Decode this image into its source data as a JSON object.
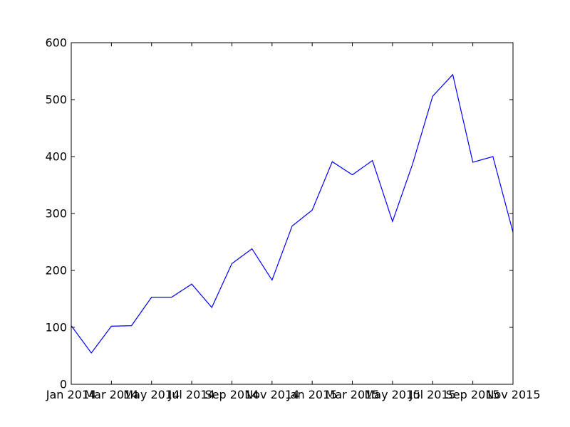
{
  "chart_data": {
    "type": "line",
    "title": "",
    "xlabel": "",
    "ylabel": "",
    "grid": false,
    "ylim": [
      0,
      600
    ],
    "yticks": [
      0,
      100,
      200,
      300,
      400,
      500,
      600
    ],
    "xlim": [
      "2014-01",
      "2015-11"
    ],
    "xticks": [
      "2014-01",
      "2014-03",
      "2014-05",
      "2014-07",
      "2014-09",
      "2014-11",
      "2015-01",
      "2015-03",
      "2015-05",
      "2015-07",
      "2015-09",
      "2015-11"
    ],
    "xtick_labels": [
      "Jan 2014",
      "Mar 2014",
      "May 2014",
      "Jul 2014",
      "Sep 2014",
      "Nov 2014",
      "Jan 2015",
      "Mar 2015",
      "May 2015",
      "Jul 2015",
      "Sep 2015",
      "Nov 2015"
    ],
    "series": [
      {
        "color": "#0000ff",
        "x": [
          "2014-01",
          "2014-02",
          "2014-03",
          "2014-04",
          "2014-05",
          "2014-06",
          "2014-07",
          "2014-08",
          "2014-09",
          "2014-10",
          "2014-11",
          "2014-12",
          "2015-01",
          "2015-02",
          "2015-03",
          "2015-04",
          "2015-05",
          "2015-06",
          "2015-07",
          "2015-08",
          "2015-09",
          "2015-10",
          "2015-11"
        ],
        "values": [
          103,
          55,
          102,
          103,
          153,
          153,
          176,
          135,
          212,
          238,
          183,
          278,
          306,
          391,
          368,
          393,
          286,
          387,
          506,
          544,
          390,
          400,
          267
        ]
      }
    ]
  }
}
